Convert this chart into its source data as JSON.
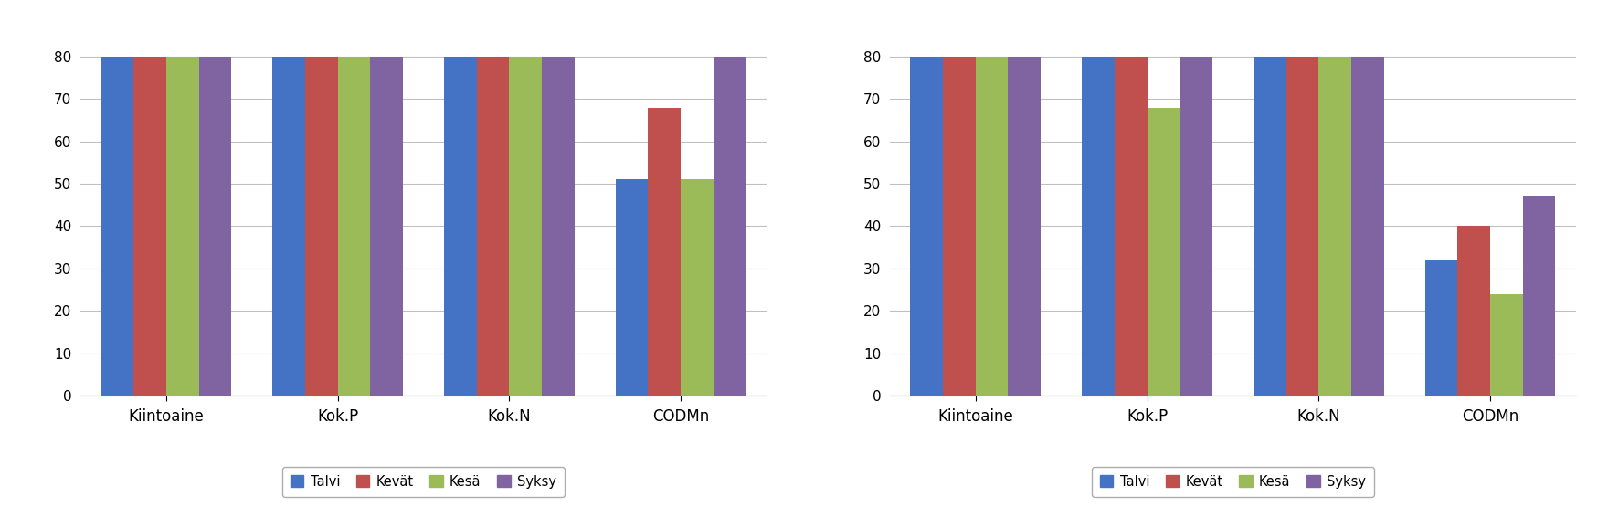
{
  "categories": [
    "Kiintoaine",
    "Kok.P",
    "Kok.N",
    "CODMn"
  ],
  "series_names": [
    "Talvi",
    "Kevät",
    "Kesä",
    "Syksy"
  ],
  "colors": [
    "#4472C4",
    "#C0504D",
    "#9BBB59",
    "#8064A2"
  ],
  "left_chart": {
    "Talvi": [
      80,
      80,
      80,
      51
    ],
    "Kevät": [
      80,
      80,
      80,
      68
    ],
    "Kesä": [
      80,
      80,
      80,
      51
    ],
    "Syksy": [
      80,
      80,
      80,
      80
    ]
  },
  "right_chart": {
    "Talvi": [
      80,
      80,
      80,
      32
    ],
    "Kevät": [
      80,
      80,
      80,
      40
    ],
    "Kesä": [
      80,
      68,
      80,
      24
    ],
    "Syksy": [
      80,
      80,
      80,
      47
    ]
  },
  "ylim": [
    0,
    85
  ],
  "yticks": [
    0,
    10,
    20,
    30,
    40,
    50,
    60,
    70,
    80
  ],
  "background_color": "#FFFFFF",
  "grid_color": "#BFBFBF",
  "legend_fontsize": 10.5,
  "tick_fontsize": 11,
  "xlabel_fontsize": 12,
  "bar_width": 0.19
}
